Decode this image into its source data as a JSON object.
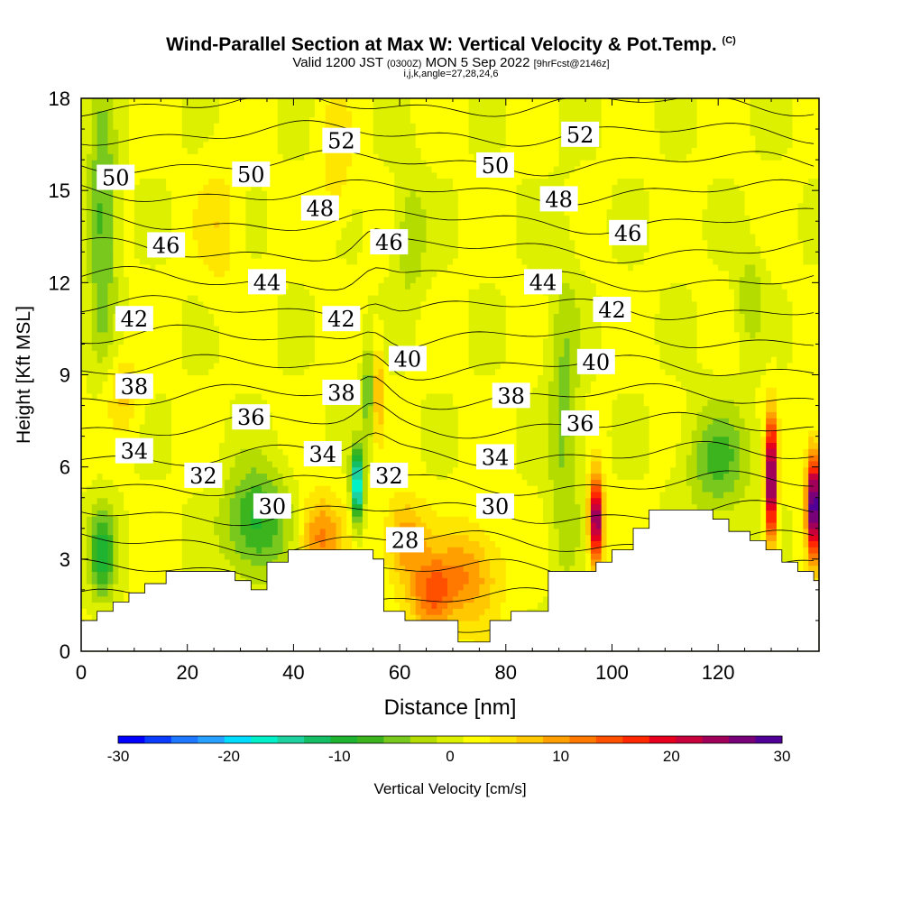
{
  "header": {
    "title_main": "Wind-Parallel Section at Max W: Vertical Velocity & Pot.Temp.",
    "title_mark": "(C)",
    "valid_a": "Valid 1200 JST",
    "valid_b": "(0300Z)",
    "valid_c": "MON 5 Sep 2022",
    "valid_d": "[9hrFcst@2146z]",
    "ijk": "i,j,k,angle=27,28,24,6"
  },
  "chart_data": {
    "type": "heatmap",
    "xlabel": "Distance [nm]",
    "ylabel": "Height [Kft MSL]",
    "xlim": [
      0,
      139
    ],
    "ylim": [
      0,
      18
    ],
    "xticks": [
      0,
      20,
      40,
      60,
      80,
      100,
      120
    ],
    "yticks": [
      0,
      3,
      6,
      9,
      12,
      15,
      18
    ],
    "colorbar": {
      "label": "Vertical Velocity [cm/s]",
      "ticks": [
        -30,
        -20,
        -10,
        0,
        10,
        20,
        30
      ],
      "range": [
        -30,
        30
      ],
      "colors": [
        "#0000ff",
        "#0a3cff",
        "#1e78ff",
        "#28a0ff",
        "#00dcff",
        "#00f0c8",
        "#1ed2a0",
        "#14be64",
        "#1eb432",
        "#3cb41e",
        "#78c81e",
        "#b4dc00",
        "#dcf000",
        "#ffff00",
        "#ffe600",
        "#ffc800",
        "#ffa000",
        "#ff7800",
        "#ff5000",
        "#ff2800",
        "#e6001e",
        "#c8003c",
        "#a0005a",
        "#780078",
        "#500096"
      ]
    },
    "theta_labels": [
      {
        "text": "52",
        "x": 49,
        "y": 16.6
      },
      {
        "text": "52",
        "x": 94,
        "y": 16.8
      },
      {
        "text": "50",
        "x": 6.5,
        "y": 15.4
      },
      {
        "text": "50",
        "x": 32,
        "y": 15.5
      },
      {
        "text": "50",
        "x": 78,
        "y": 15.8
      },
      {
        "text": "48",
        "x": 45,
        "y": 14.4
      },
      {
        "text": "48",
        "x": 90,
        "y": 14.7
      },
      {
        "text": "46",
        "x": 16,
        "y": 13.2
      },
      {
        "text": "46",
        "x": 58,
        "y": 13.3
      },
      {
        "text": "46",
        "x": 103,
        "y": 13.6
      },
      {
        "text": "44",
        "x": 35,
        "y": 12.0
      },
      {
        "text": "44",
        "x": 87,
        "y": 12.0
      },
      {
        "text": "42",
        "x": 10,
        "y": 10.8
      },
      {
        "text": "42",
        "x": 49,
        "y": 10.8
      },
      {
        "text": "42",
        "x": 100,
        "y": 11.1
      },
      {
        "text": "40",
        "x": 61.5,
        "y": 9.5
      },
      {
        "text": "40",
        "x": 97,
        "y": 9.4
      },
      {
        "text": "38",
        "x": 10,
        "y": 8.6
      },
      {
        "text": "38",
        "x": 49,
        "y": 8.4
      },
      {
        "text": "38",
        "x": 81,
        "y": 8.3
      },
      {
        "text": "36",
        "x": 32,
        "y": 7.6
      },
      {
        "text": "36",
        "x": 94,
        "y": 7.4
      },
      {
        "text": "34",
        "x": 10,
        "y": 6.5
      },
      {
        "text": "34",
        "x": 45.5,
        "y": 6.4
      },
      {
        "text": "34",
        "x": 78,
        "y": 6.3
      },
      {
        "text": "32",
        "x": 23,
        "y": 5.7
      },
      {
        "text": "32",
        "x": 58,
        "y": 5.7
      },
      {
        "text": "30",
        "x": 36,
        "y": 4.7
      },
      {
        "text": "30",
        "x": 78,
        "y": 4.7
      },
      {
        "text": "28",
        "x": 61,
        "y": 3.6
      }
    ],
    "terrain": [
      [
        0,
        0.7
      ],
      [
        3,
        1.0
      ],
      [
        6,
        1.3
      ],
      [
        9,
        1.6
      ],
      [
        12,
        1.9
      ],
      [
        16,
        2.2
      ],
      [
        19,
        2.6
      ],
      [
        23,
        2.6
      ],
      [
        26,
        2.6
      ],
      [
        29,
        2.6
      ],
      [
        32,
        2.3
      ],
      [
        35,
        2.0
      ],
      [
        39,
        2.9
      ],
      [
        42,
        3.3
      ],
      [
        45,
        3.3
      ],
      [
        48,
        3.3
      ],
      [
        52,
        3.3
      ],
      [
        55,
        3.3
      ],
      [
        57,
        3.0
      ],
      [
        58,
        1.3
      ],
      [
        61,
        1.3
      ],
      [
        64,
        1.0
      ],
      [
        67,
        1.0
      ],
      [
        71,
        1.0
      ],
      [
        72,
        0.3
      ],
      [
        77,
        0.3
      ],
      [
        81,
        1.0
      ],
      [
        84,
        1.3
      ],
      [
        88,
        1.3
      ],
      [
        91,
        2.6
      ],
      [
        94,
        2.6
      ],
      [
        97,
        2.6
      ],
      [
        100,
        2.9
      ],
      [
        104,
        3.3
      ],
      [
        107,
        4.0
      ],
      [
        110,
        4.6
      ],
      [
        113,
        4.6
      ],
      [
        116,
        4.6
      ],
      [
        119,
        4.6
      ],
      [
        122,
        4.3
      ],
      [
        126,
        3.9
      ],
      [
        129,
        3.6
      ],
      [
        132,
        3.3
      ],
      [
        135,
        2.9
      ],
      [
        138,
        2.6
      ],
      [
        139,
        2.3
      ]
    ]
  }
}
